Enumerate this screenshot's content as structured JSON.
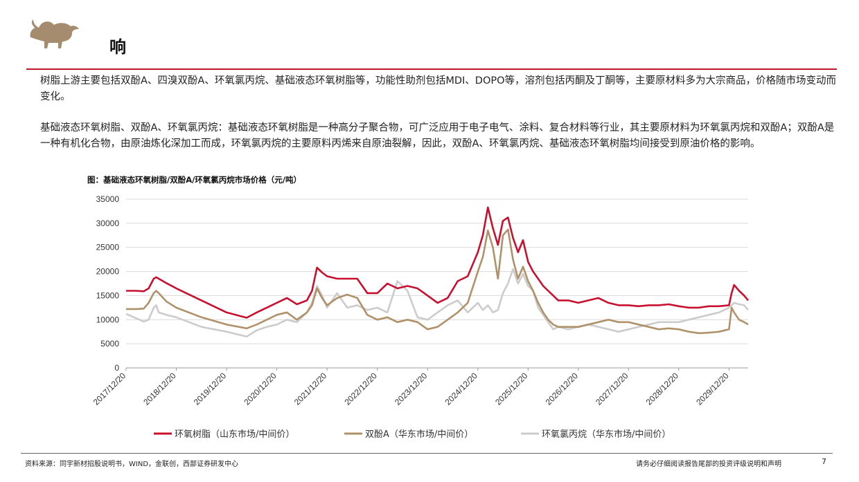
{
  "header": {
    "title": "响"
  },
  "paragraphs": [
    "树脂上游主要包括双酚A、四溴双酚A、环氧氯丙烷、基础液态环氧树脂等，功能性助剂包括MDI、DOPO等，溶剂包括丙酮及丁酮等，主要原材料多为大宗商品，价格随市场变动而变化。",
    "基础液态环氧树脂、双酚A、环氧氯丙烷：基础液态环氧树脂是一种高分子聚合物，可广泛应用于电子电气、涂料、复合材料等行业，其主要原材料为环氧氯丙烷和双酚A；双酚A是一种有机化合物，由原油炼化深加工而成，环氧氯丙烷的主要原料丙烯来自原油裂解，因此，双酚A、环氧氯丙烷、基础液态环氧树脂均间接受到原油价格的影响。"
  ],
  "chart_data": {
    "type": "line",
    "title": "图：基础液态环氧树脂/双酚A/环氧氯丙烷市场价格（元/吨）",
    "ylim": [
      0,
      35000
    ],
    "yticks": [
      "0",
      "5000",
      "10000",
      "15000",
      "20000",
      "25000",
      "30000",
      "35000"
    ],
    "xticks": [
      "2017/12/20",
      "2018/12/20",
      "2019/12/20",
      "2020/12/20",
      "2021/12/20",
      "2022/12/20",
      "2023/12/20",
      "2024/12/20",
      "2025/12/20",
      "2026/12/20",
      "2027/12/20",
      "2028/12/20",
      "2029/12/20"
    ],
    "grid": true,
    "legend_position": "bottom",
    "series": [
      {
        "name": "环氧树脂（山东市场/中间价）",
        "color": "#c8102e",
        "x": [
          0,
          0.2,
          0.35,
          0.45,
          0.55,
          0.6,
          0.65,
          0.8,
          1.0,
          1.5,
          2.0,
          2.4,
          2.6,
          2.8,
          3.0,
          3.2,
          3.4,
          3.6,
          3.7,
          3.8,
          3.9,
          4.0,
          4.2,
          4.4,
          4.6,
          4.8,
          5.0,
          5.2,
          5.4,
          5.6,
          5.8,
          6.0,
          6.2,
          6.4,
          6.6,
          6.8,
          7.0,
          7.1,
          7.2,
          7.3,
          7.4,
          7.5,
          7.6,
          7.7,
          7.8,
          7.9,
          8.0,
          8.1,
          8.2,
          8.3,
          8.4,
          8.5,
          8.6,
          8.8,
          9.0,
          9.2,
          9.4,
          9.6,
          9.8,
          10.0,
          10.2,
          10.4,
          10.6,
          10.8,
          11.0,
          11.2,
          11.4,
          11.6,
          11.8,
          12.0,
          12.05,
          12.1,
          12.2,
          12.3,
          12.38
        ],
        "y": [
          16000,
          16000,
          15900,
          16500,
          18500,
          18800,
          18500,
          17600,
          16500,
          14000,
          11500,
          10400,
          11500,
          12500,
          13500,
          14500,
          13200,
          14000,
          16000,
          20800,
          19800,
          19000,
          18500,
          18500,
          18500,
          15500,
          15500,
          17500,
          16500,
          17000,
          16500,
          15000,
          13500,
          14500,
          18000,
          19000,
          24000,
          27500,
          33300,
          29000,
          25500,
          30500,
          31200,
          27000,
          24000,
          26500,
          22000,
          20000,
          18500,
          17000,
          16000,
          15000,
          14000,
          14000,
          13500,
          14000,
          14500,
          13500,
          13000,
          13000,
          12800,
          13000,
          13000,
          13200,
          12800,
          12500,
          12500,
          12800,
          12800,
          13000,
          15500,
          17200,
          16000,
          15000,
          14000
        ]
      },
      {
        "name": "双酚A（华东市场/中间价）",
        "color": "#b0926a",
        "x": [
          0,
          0.2,
          0.35,
          0.45,
          0.55,
          0.6,
          0.65,
          0.8,
          1.0,
          1.5,
          2.0,
          2.4,
          2.6,
          2.8,
          3.0,
          3.2,
          3.4,
          3.6,
          3.7,
          3.8,
          3.9,
          4.0,
          4.2,
          4.4,
          4.6,
          4.8,
          5.0,
          5.2,
          5.4,
          5.6,
          5.8,
          6.0,
          6.2,
          6.4,
          6.6,
          6.8,
          7.0,
          7.1,
          7.2,
          7.3,
          7.4,
          7.5,
          7.6,
          7.7,
          7.8,
          7.9,
          8.0,
          8.1,
          8.2,
          8.3,
          8.4,
          8.5,
          8.6,
          8.8,
          9.0,
          9.2,
          9.4,
          9.6,
          9.8,
          10.0,
          10.2,
          10.4,
          10.6,
          10.8,
          11.0,
          11.2,
          11.4,
          11.6,
          11.8,
          12.0,
          12.05,
          12.1,
          12.2,
          12.3,
          12.38
        ],
        "y": [
          12200,
          12200,
          12300,
          13500,
          15500,
          16000,
          15500,
          13800,
          12500,
          10500,
          9000,
          8200,
          9000,
          10000,
          11000,
          11500,
          10000,
          11500,
          13000,
          16500,
          14500,
          13000,
          14500,
          15200,
          14500,
          11000,
          10000,
          10500,
          9500,
          10000,
          9500,
          8000,
          8500,
          10000,
          11500,
          13500,
          20000,
          23000,
          28500,
          25000,
          18500,
          27500,
          28700,
          22500,
          18500,
          21000,
          18000,
          16000,
          13500,
          11500,
          10000,
          9000,
          8500,
          8500,
          8500,
          9000,
          9500,
          10000,
          9500,
          9500,
          9000,
          8500,
          8000,
          8200,
          8000,
          7500,
          7200,
          7300,
          7500,
          8000,
          12500,
          11500,
          10000,
          9500,
          9000
        ]
      },
      {
        "name": "环氧氯丙烷（华东市场/中间价）",
        "color": "#cccccc",
        "x": [
          0,
          0.2,
          0.35,
          0.45,
          0.55,
          0.6,
          0.65,
          0.8,
          1.0,
          1.5,
          2.0,
          2.4,
          2.6,
          2.8,
          3.0,
          3.2,
          3.4,
          3.6,
          3.7,
          3.8,
          3.9,
          4.0,
          4.2,
          4.4,
          4.6,
          4.8,
          5.0,
          5.2,
          5.4,
          5.6,
          5.8,
          6.0,
          6.2,
          6.4,
          6.6,
          6.8,
          7.0,
          7.1,
          7.2,
          7.3,
          7.4,
          7.5,
          7.6,
          7.7,
          7.8,
          7.9,
          8.0,
          8.1,
          8.2,
          8.3,
          8.4,
          8.5,
          8.6,
          8.8,
          9.0,
          9.2,
          9.4,
          9.6,
          9.8,
          10.0,
          10.2,
          10.4,
          10.6,
          10.8,
          11.0,
          11.2,
          11.4,
          11.6,
          11.8,
          12.0,
          12.05,
          12.1,
          12.2,
          12.3,
          12.38
        ],
        "y": [
          11200,
          10300,
          9600,
          10000,
          12500,
          13000,
          11500,
          11000,
          10500,
          8500,
          7500,
          6500,
          7800,
          8500,
          9000,
          10000,
          9500,
          11500,
          13500,
          17000,
          15000,
          12500,
          15500,
          12500,
          13000,
          12000,
          12500,
          11500,
          18000,
          16000,
          10500,
          10000,
          11500,
          13000,
          14000,
          11500,
          13500,
          12000,
          13000,
          11500,
          12000,
          15500,
          17500,
          20500,
          17500,
          19500,
          17000,
          16000,
          12500,
          11000,
          9500,
          8000,
          8500,
          8000,
          8500,
          9000,
          8500,
          8000,
          7500,
          8000,
          8500,
          9000,
          9500,
          9500,
          9500,
          10000,
          10500,
          11000,
          11500,
          12500,
          13000,
          13500,
          13200,
          13000,
          12000
        ]
      }
    ]
  },
  "footer": {
    "source": "资料来源：同宇新材招股说明书，WIND，金联创，西部证券研发中心",
    "disclaimer": "请务必仔细阅读报告尾部的投资评级说明和声明",
    "page": "7"
  }
}
